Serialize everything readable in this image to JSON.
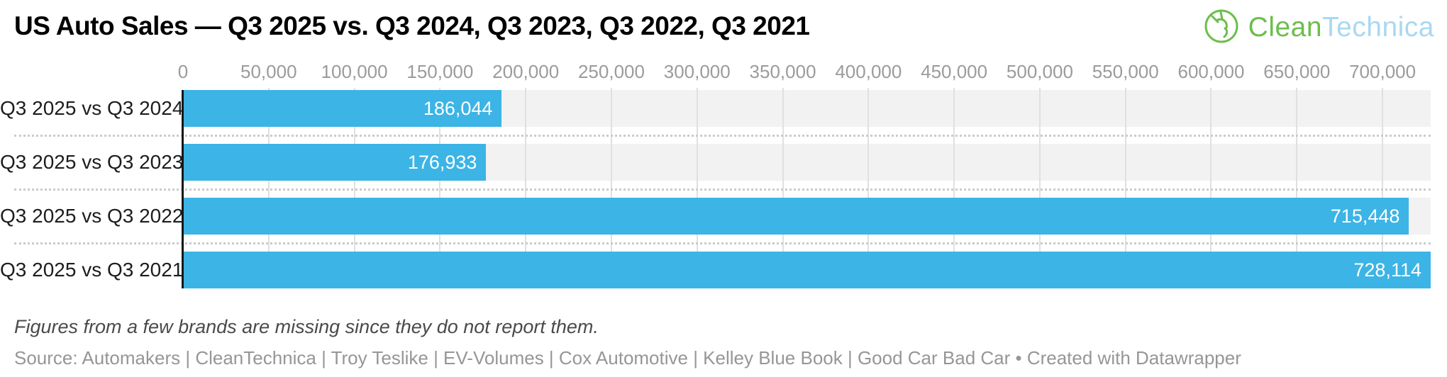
{
  "header": {
    "title": "US Auto Sales — Q3 2025 vs. Q3 2024, Q3 2023, Q3 2022, Q3 2021",
    "logo": {
      "part_green": "Clean",
      "part_blue": "Technica",
      "green_color": "#6cbe4c",
      "blue_color": "#a9d8f2"
    }
  },
  "chart_data": {
    "type": "bar",
    "orientation": "horizontal",
    "categories": [
      "Q3 2025 vs Q3 2024",
      "Q3 2025 vs Q3 2023",
      "Q3 2025 vs Q3 2022",
      "Q3 2025 vs Q3 2021"
    ],
    "values": [
      186044,
      176933,
      715448,
      728114
    ],
    "value_labels": [
      "186,044",
      "176,933",
      "715,448",
      "728,114"
    ],
    "x_ticks": [
      0,
      50000,
      100000,
      150000,
      200000,
      250000,
      300000,
      350000,
      400000,
      450000,
      500000,
      550000,
      600000,
      650000,
      700000
    ],
    "x_tick_labels": [
      "0",
      "50,000",
      "100,000",
      "150,000",
      "200,000",
      "250,000",
      "300,000",
      "350,000",
      "400,000",
      "450,000",
      "500,000",
      "550,000",
      "600,000",
      "650,000",
      "700,000"
    ],
    "xlim": [
      0,
      728114
    ],
    "grid": true,
    "legend": "none",
    "colors": {
      "bar": "#3cb4e5",
      "row_band": "#f2f2f2",
      "gridline": "#e0e0e0",
      "row_separator_dotted": "#cbcbcb",
      "zero_axis": "#161718",
      "tick_text": "#9b9b9b",
      "category_text": "#1d1d1d",
      "value_text": "#ffffff"
    }
  },
  "footer": {
    "footnote": "Figures from a few brands are missing since they do not report them.",
    "source": "Source: Automakers | CleanTechnica | Troy Teslike | EV-Volumes | Cox Automotive | Kelley Blue Book | Good Car Bad Car • Created with Datawrapper"
  }
}
